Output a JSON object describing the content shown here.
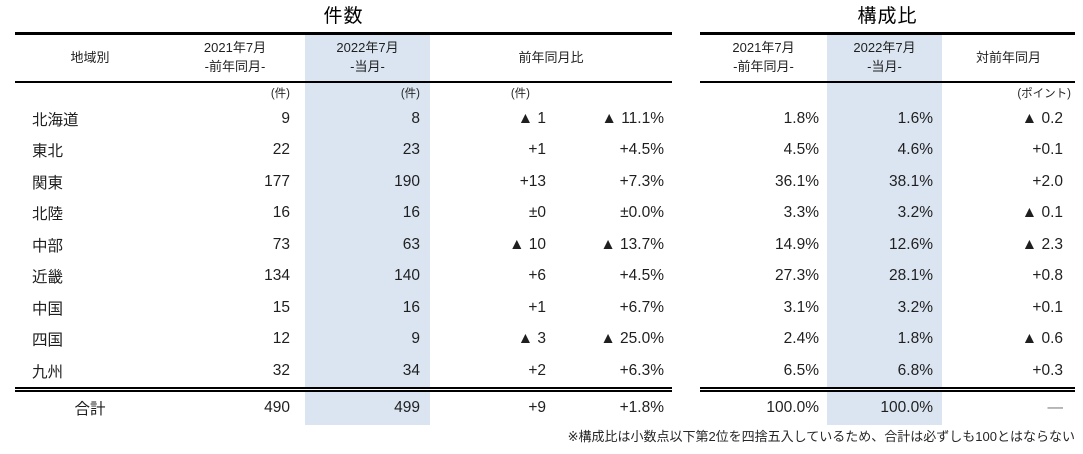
{
  "page": {
    "background": "#ffffff",
    "highlight_color": "#dbe5f1",
    "footnote": "※構成比は小数点以下第2位を四捨五入しているため、合計は必ずしも100とはならない"
  },
  "count_table": {
    "title": "件数",
    "headers": {
      "region": "地域別",
      "prev_line1": "2021年7月",
      "prev_line2": "-前年同月-",
      "curr_line1": "2022年7月",
      "curr_line2": "-当月-",
      "yoy": "前年同月比"
    },
    "units": {
      "prev": "(件)",
      "curr": "(件)",
      "yoy": "(件)"
    },
    "rows": [
      {
        "region": "北海道",
        "prev": "9",
        "curr": "8",
        "diff": "▲ 1",
        "pct": "▲ 11.1%"
      },
      {
        "region": "東北",
        "prev": "22",
        "curr": "23",
        "diff": "+1",
        "pct": "+4.5%"
      },
      {
        "region": "関東",
        "prev": "177",
        "curr": "190",
        "diff": "+13",
        "pct": "+7.3%"
      },
      {
        "region": "北陸",
        "prev": "16",
        "curr": "16",
        "diff": "±0",
        "pct": "±0.0%"
      },
      {
        "region": "中部",
        "prev": "73",
        "curr": "63",
        "diff": "▲ 10",
        "pct": "▲ 13.7%"
      },
      {
        "region": "近畿",
        "prev": "134",
        "curr": "140",
        "diff": "+6",
        "pct": "+4.5%"
      },
      {
        "region": "中国",
        "prev": "15",
        "curr": "16",
        "diff": "+1",
        "pct": "+6.7%"
      },
      {
        "region": "四国",
        "prev": "12",
        "curr": "9",
        "diff": "▲ 3",
        "pct": "▲ 25.0%"
      },
      {
        "region": "九州",
        "prev": "32",
        "curr": "34",
        "diff": "+2",
        "pct": "+6.3%"
      }
    ],
    "total": {
      "region": "合計",
      "prev": "490",
      "curr": "499",
      "diff": "+9",
      "pct": "+1.8%"
    }
  },
  "ratio_table": {
    "title": "構成比",
    "headers": {
      "prev_line1": "2021年7月",
      "prev_line2": "-前年同月-",
      "curr_line1": "2022年7月",
      "curr_line2": "-当月-",
      "change": "対前年同月"
    },
    "units": {
      "change": "(ポイント)"
    },
    "rows": [
      {
        "prev": "1.8%",
        "curr": "1.6%",
        "change": "▲ 0.2"
      },
      {
        "prev": "4.5%",
        "curr": "4.6%",
        "change": "+0.1"
      },
      {
        "prev": "36.1%",
        "curr": "38.1%",
        "change": "+2.0"
      },
      {
        "prev": "3.3%",
        "curr": "3.2%",
        "change": "▲ 0.1"
      },
      {
        "prev": "14.9%",
        "curr": "12.6%",
        "change": "▲ 2.3"
      },
      {
        "prev": "27.3%",
        "curr": "28.1%",
        "change": "+0.8"
      },
      {
        "prev": "3.1%",
        "curr": "3.2%",
        "change": "+0.1"
      },
      {
        "prev": "2.4%",
        "curr": "1.8%",
        "change": "▲ 0.6"
      },
      {
        "prev": "6.5%",
        "curr": "6.8%",
        "change": "+0.3"
      }
    ],
    "total": {
      "prev": "100.0%",
      "curr": "100.0%",
      "change": "—"
    }
  }
}
